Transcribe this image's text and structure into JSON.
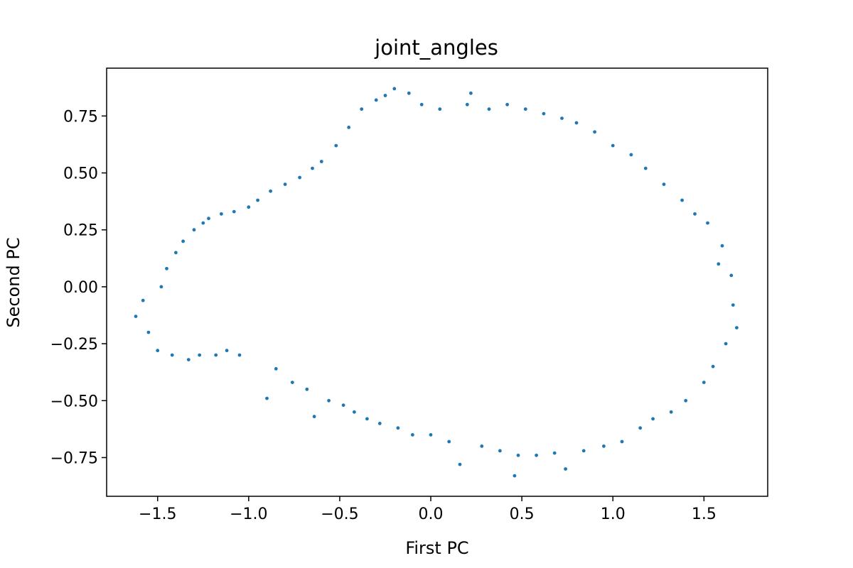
{
  "chart_data": {
    "type": "scatter",
    "title": "joint_angles",
    "xlabel": "First PC",
    "ylabel": "Second PC",
    "xlim": [
      -1.78,
      1.85
    ],
    "ylim": [
      -0.92,
      0.96
    ],
    "grid": false,
    "legend": "none",
    "x_ticks": [
      {
        "value": -1.5,
        "label": "−1.5"
      },
      {
        "value": -1.0,
        "label": "−1.0"
      },
      {
        "value": -0.5,
        "label": "−0.5"
      },
      {
        "value": 0.0,
        "label": "0.0"
      },
      {
        "value": 0.5,
        "label": "0.5"
      },
      {
        "value": 1.0,
        "label": "1.0"
      },
      {
        "value": 1.5,
        "label": "1.5"
      }
    ],
    "y_ticks": [
      {
        "value": -0.75,
        "label": "−0.75"
      },
      {
        "value": -0.5,
        "label": "−0.50"
      },
      {
        "value": -0.25,
        "label": "−0.25"
      },
      {
        "value": 0.0,
        "label": "0.00"
      },
      {
        "value": 0.25,
        "label": "0.25"
      },
      {
        "value": 0.5,
        "label": "0.50"
      },
      {
        "value": 0.75,
        "label": "0.75"
      }
    ],
    "series": [
      {
        "color": "#1f77b4",
        "marker": "circle",
        "points": [
          [
            -1.62,
            -0.13
          ],
          [
            -1.58,
            -0.06
          ],
          [
            -1.55,
            -0.2
          ],
          [
            -1.5,
            -0.28
          ],
          [
            -1.48,
            0.0
          ],
          [
            -1.45,
            0.08
          ],
          [
            -1.42,
            -0.3
          ],
          [
            -1.4,
            0.15
          ],
          [
            -1.36,
            0.2
          ],
          [
            -1.33,
            -0.32
          ],
          [
            -1.3,
            0.25
          ],
          [
            -1.27,
            -0.3
          ],
          [
            -1.25,
            0.28
          ],
          [
            -1.22,
            0.3
          ],
          [
            -1.18,
            -0.3
          ],
          [
            -1.15,
            0.32
          ],
          [
            -1.12,
            -0.28
          ],
          [
            -1.08,
            0.33
          ],
          [
            -1.05,
            -0.3
          ],
          [
            -1.0,
            0.35
          ],
          [
            -0.95,
            0.38
          ],
          [
            -0.9,
            -0.49
          ],
          [
            -0.88,
            0.42
          ],
          [
            -0.85,
            -0.36
          ],
          [
            -0.8,
            0.45
          ],
          [
            -0.76,
            -0.42
          ],
          [
            -0.72,
            0.48
          ],
          [
            -0.68,
            -0.45
          ],
          [
            -0.65,
            0.52
          ],
          [
            -0.64,
            -0.57
          ],
          [
            -0.6,
            0.55
          ],
          [
            -0.56,
            -0.5
          ],
          [
            -0.52,
            0.62
          ],
          [
            -0.48,
            -0.52
          ],
          [
            -0.45,
            0.7
          ],
          [
            -0.42,
            -0.55
          ],
          [
            -0.38,
            0.78
          ],
          [
            -0.35,
            -0.58
          ],
          [
            -0.3,
            0.82
          ],
          [
            -0.28,
            -0.6
          ],
          [
            -0.25,
            0.84
          ],
          [
            -0.2,
            0.87
          ],
          [
            -0.18,
            -0.62
          ],
          [
            -0.12,
            0.85
          ],
          [
            -0.1,
            -0.65
          ],
          [
            -0.05,
            0.8
          ],
          [
            0.0,
            -0.65
          ],
          [
            0.05,
            0.78
          ],
          [
            0.1,
            -0.68
          ],
          [
            0.16,
            -0.78
          ],
          [
            0.2,
            0.8
          ],
          [
            0.22,
            0.85
          ],
          [
            0.28,
            -0.7
          ],
          [
            0.32,
            0.78
          ],
          [
            0.38,
            -0.72
          ],
          [
            0.42,
            0.8
          ],
          [
            0.46,
            -0.83
          ],
          [
            0.48,
            -0.74
          ],
          [
            0.52,
            0.78
          ],
          [
            0.58,
            -0.74
          ],
          [
            0.62,
            0.76
          ],
          [
            0.68,
            -0.73
          ],
          [
            0.72,
            0.74
          ],
          [
            0.74,
            -0.8
          ],
          [
            0.8,
            0.72
          ],
          [
            0.84,
            -0.72
          ],
          [
            0.9,
            0.68
          ],
          [
            0.95,
            -0.7
          ],
          [
            1.0,
            0.62
          ],
          [
            1.05,
            -0.68
          ],
          [
            1.1,
            0.58
          ],
          [
            1.15,
            -0.62
          ],
          [
            1.18,
            0.52
          ],
          [
            1.22,
            -0.58
          ],
          [
            1.28,
            0.45
          ],
          [
            1.32,
            -0.55
          ],
          [
            1.38,
            0.38
          ],
          [
            1.4,
            -0.5
          ],
          [
            1.45,
            0.32
          ],
          [
            1.5,
            -0.42
          ],
          [
            1.52,
            0.28
          ],
          [
            1.55,
            -0.35
          ],
          [
            1.6,
            0.18
          ],
          [
            1.62,
            -0.25
          ],
          [
            1.65,
            0.05
          ],
          [
            1.68,
            -0.18
          ],
          [
            1.66,
            -0.08
          ],
          [
            1.58,
            0.1
          ]
        ]
      }
    ]
  }
}
